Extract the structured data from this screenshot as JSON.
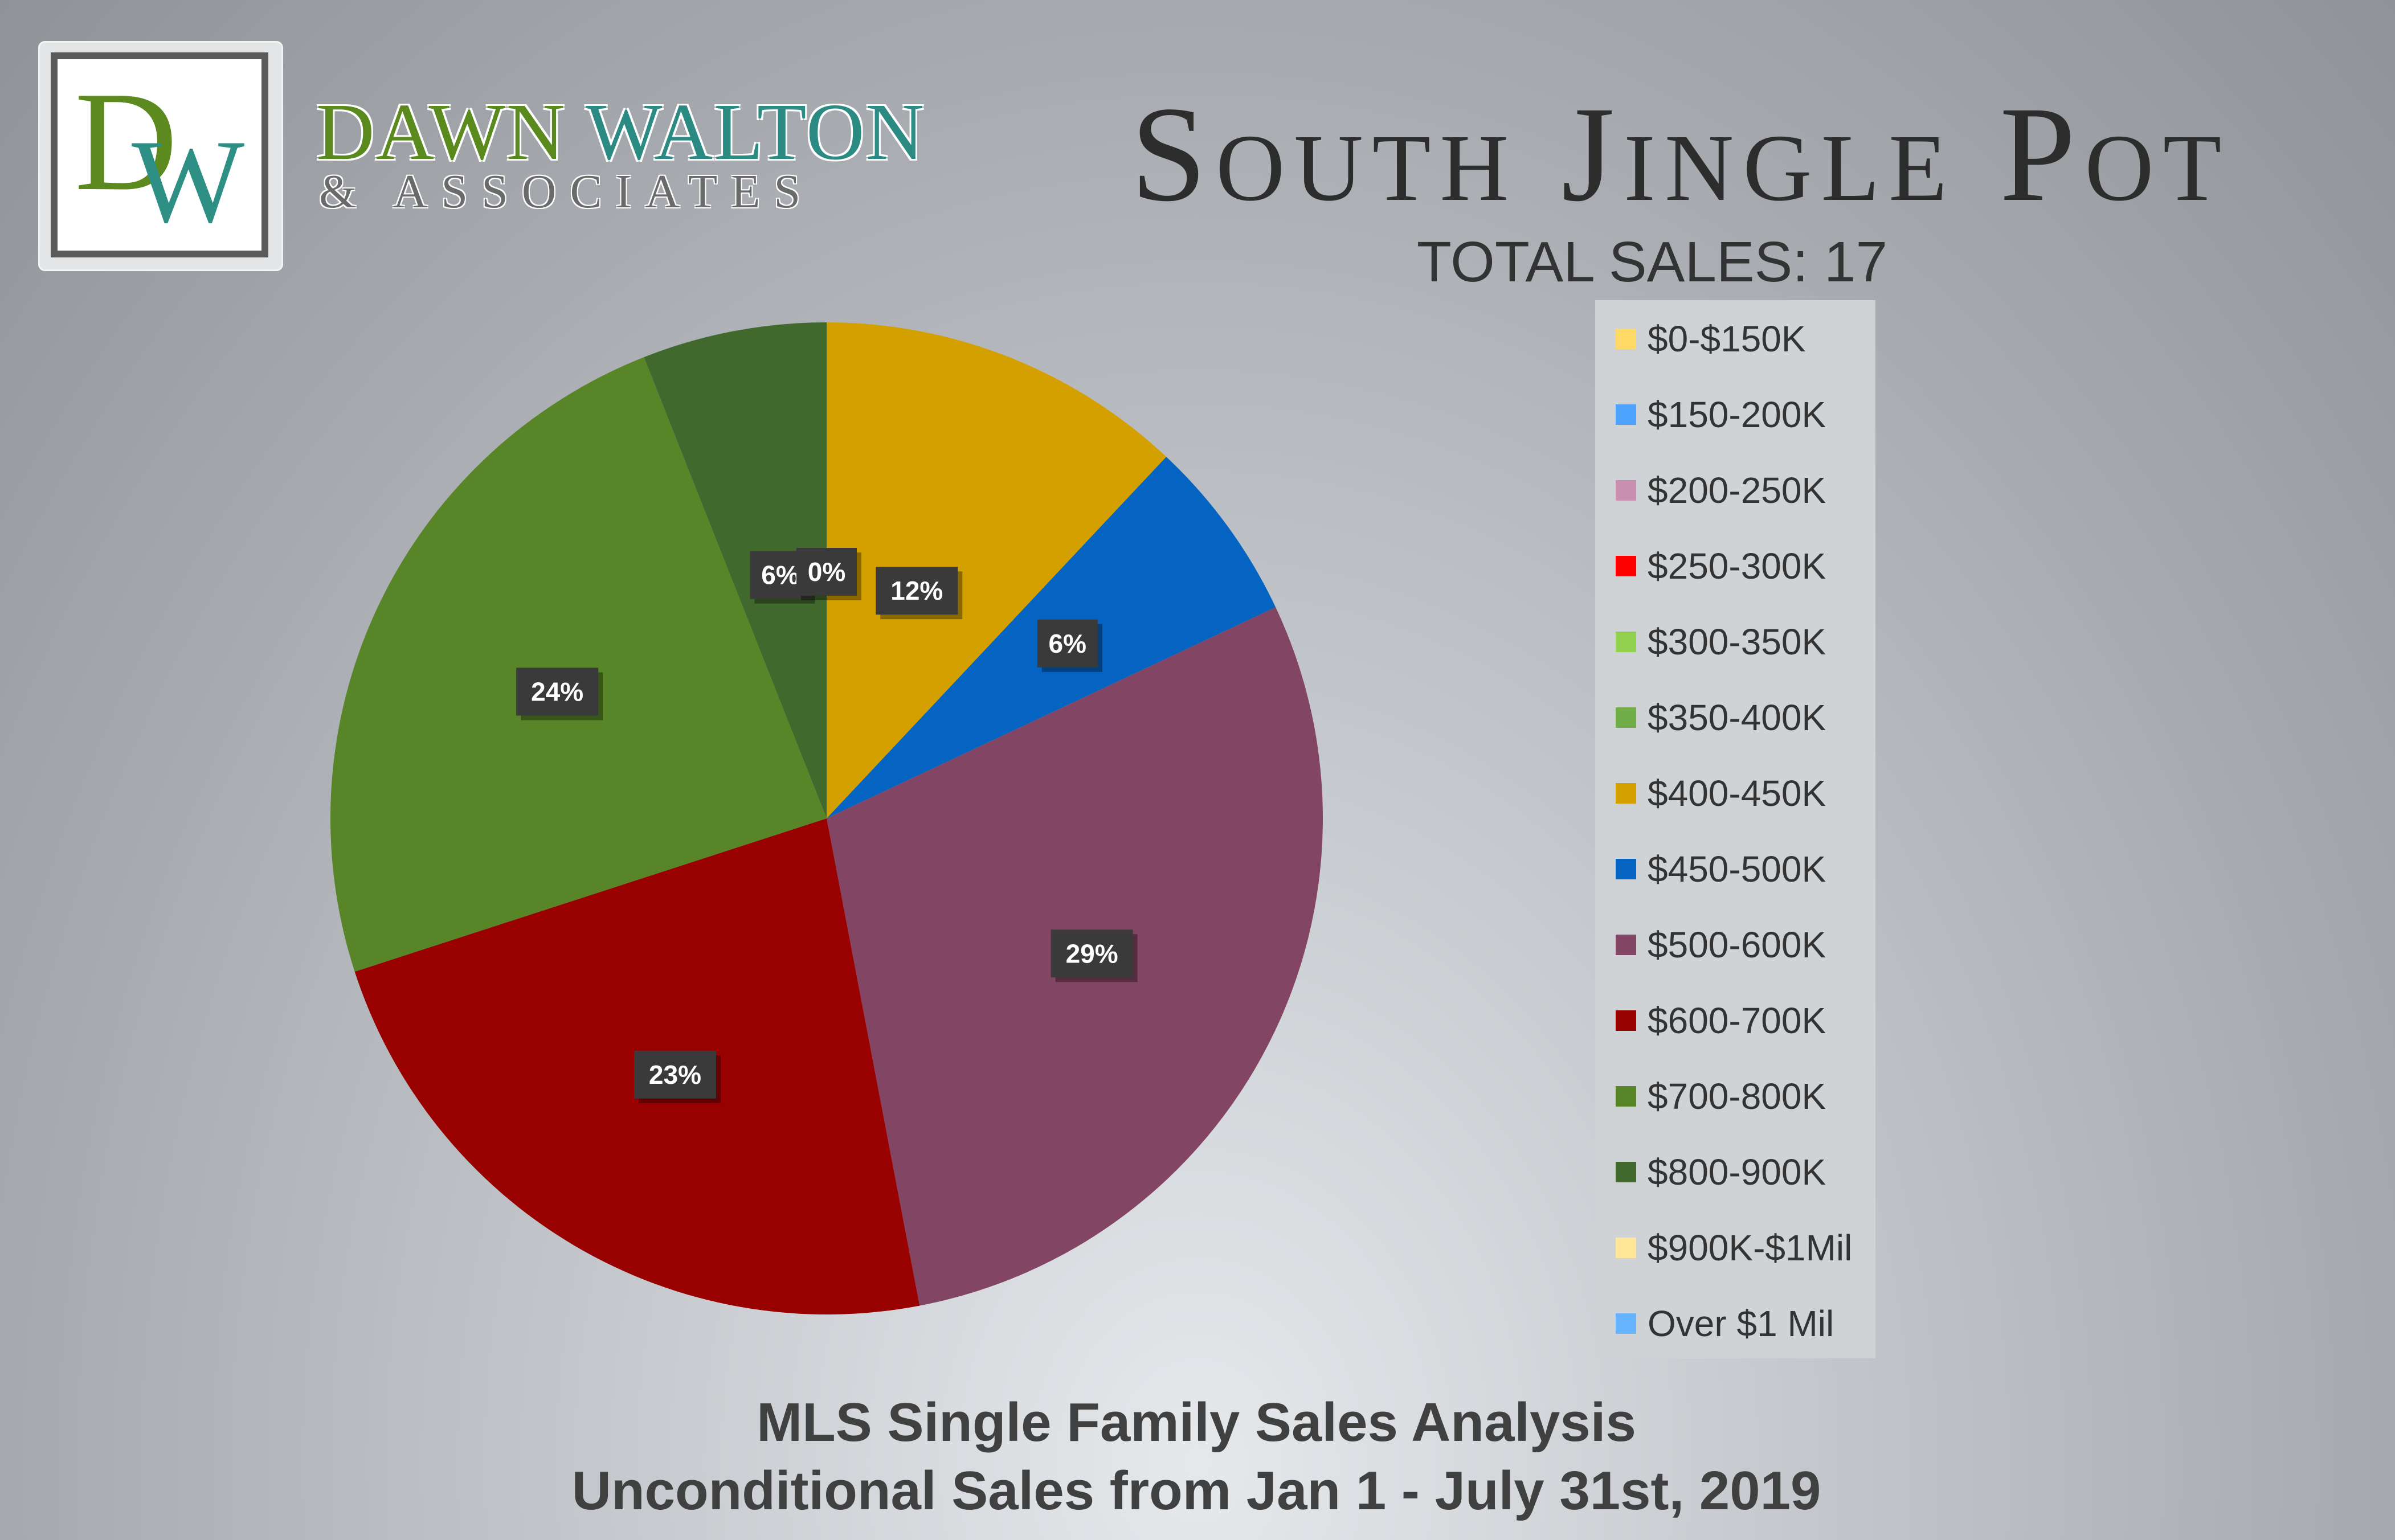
{
  "brand": {
    "logo_letters": "DW",
    "name_part1": "DAWN",
    "name_part2": "WALTON",
    "subtitle": "& ASSOCIATES",
    "color_green": "#5a8a1d",
    "color_teal": "#2b8a82"
  },
  "header": {
    "title": "South Jingle Pot",
    "total_sales": "TOTAL SALES: 17"
  },
  "footer": {
    "line1": "MLS Single Family Sales Analysis",
    "line2": "Unconditional Sales from Jan 1 - July 31st, 2019"
  },
  "chart_data": {
    "type": "pie",
    "legend_placement": "right",
    "slices": [
      {
        "label": "$0-$150K",
        "value": 0,
        "color": "#ffd966"
      },
      {
        "label": "$150-200K",
        "value": 0,
        "color": "#4da3ff"
      },
      {
        "label": "$200-250K",
        "value": 0,
        "color": "#c88fb0"
      },
      {
        "label": "$250-300K",
        "value": 0,
        "color": "#ff0000"
      },
      {
        "label": "$300-350K",
        "value": 0,
        "color": "#92d050"
      },
      {
        "label": "$350-400K",
        "value": 0,
        "color": "#70ad47"
      },
      {
        "label": "$400-450K",
        "value": 12,
        "color": "#d4a000"
      },
      {
        "label": "$450-500K",
        "value": 6,
        "color": "#0563c1"
      },
      {
        "label": "$500-600K",
        "value": 29,
        "color": "#824664"
      },
      {
        "label": "$600-700K",
        "value": 23,
        "color": "#990000"
      },
      {
        "label": "$700-800K",
        "value": 24,
        "color": "#588527"
      },
      {
        "label": "$800-900K",
        "value": 6,
        "color": "#42692d"
      },
      {
        "label": "$900K-$1Mil",
        "value": 0,
        "color": "#ffe699"
      },
      {
        "label": "Over $1 Mil",
        "value": 0,
        "color": "#66b3ff"
      }
    ],
    "data_labels": [
      {
        "slice": "$400-450K",
        "text": "12%"
      },
      {
        "slice": "$450-500K",
        "text": "6%"
      },
      {
        "slice": "$500-600K",
        "text": "29%"
      },
      {
        "slice": "$600-700K",
        "text": "23%"
      },
      {
        "slice": "$700-800K",
        "text": "24%"
      },
      {
        "slice": "$800-900K",
        "text": "6%"
      },
      {
        "slice": "$900K-$1Mil",
        "text": "0%"
      }
    ]
  }
}
